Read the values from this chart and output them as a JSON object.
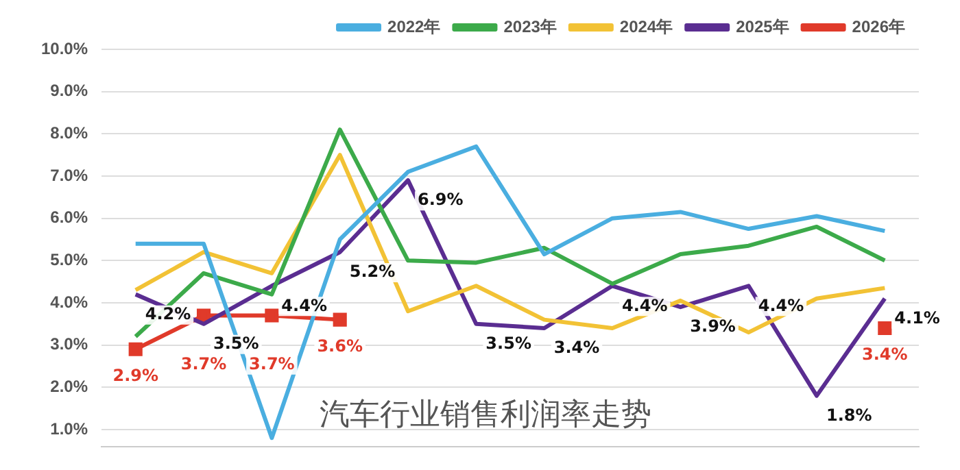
{
  "chart_data": {
    "type": "line",
    "title": "汽车行业销售利润率走势",
    "categories": [
      null,
      null,
      null,
      null,
      null,
      null,
      null,
      null,
      null,
      null,
      null,
      null
    ],
    "series": [
      {
        "name": "2022年",
        "color": "#4aaee0",
        "values": [
          5.4,
          5.4,
          0.8,
          5.5,
          7.1,
          7.7,
          5.15,
          6.0,
          6.15,
          5.75,
          6.05,
          5.7
        ]
      },
      {
        "name": "2023年",
        "color": "#3caa4a",
        "values": [
          3.2,
          4.7,
          4.2,
          8.1,
          5.0,
          4.95,
          5.3,
          4.45,
          5.15,
          5.35,
          5.8,
          5.0
        ]
      },
      {
        "name": "2024年",
        "color": "#f2c235",
        "values": [
          4.3,
          5.2,
          4.7,
          7.5,
          3.8,
          4.4,
          3.6,
          3.4,
          4.05,
          3.3,
          4.1,
          4.35
        ]
      },
      {
        "name": "2025年",
        "color": "#5a2d91",
        "values": [
          4.2,
          3.5,
          4.4,
          5.2,
          6.9,
          3.5,
          3.4,
          4.4,
          3.9,
          4.4,
          1.8,
          4.1
        ],
        "value_labels": [
          "4.2%",
          "3.5%",
          "4.4%",
          "5.2%",
          "6.9%",
          "3.5%",
          "3.4%",
          "4.4%",
          "3.9%",
          "4.4%",
          "1.8%",
          "4.1%"
        ]
      },
      {
        "name": "2026年",
        "color": "#e03a2a",
        "marker": "square",
        "values": [
          2.9,
          3.7,
          3.7,
          3.6,
          null,
          null,
          null,
          null,
          null,
          null,
          null,
          3.4
        ],
        "value_labels": [
          "2.9%",
          "3.7%",
          "3.7%",
          "3.6%",
          null,
          null,
          null,
          null,
          null,
          null,
          null,
          "3.4%"
        ]
      }
    ],
    "ylim": [
      0.6,
      10
    ],
    "yticks": [
      {
        "value": 1,
        "label": "1.0%"
      },
      {
        "value": 2,
        "label": "2.0%"
      },
      {
        "value": 3,
        "label": "3.0%"
      },
      {
        "value": 4,
        "label": "4.0%"
      },
      {
        "value": 5,
        "label": "5.0%"
      },
      {
        "value": 6,
        "label": "6.0%"
      },
      {
        "value": 7,
        "label": "7.0%"
      },
      {
        "value": 8,
        "label": "8.0%"
      },
      {
        "value": 9,
        "label": "9.0%"
      },
      {
        "value": 10,
        "label": "10.0%"
      }
    ],
    "grid": "y",
    "legend": "top right",
    "marker": "none",
    "line_style": "solid",
    "tick_labels": "y"
  }
}
